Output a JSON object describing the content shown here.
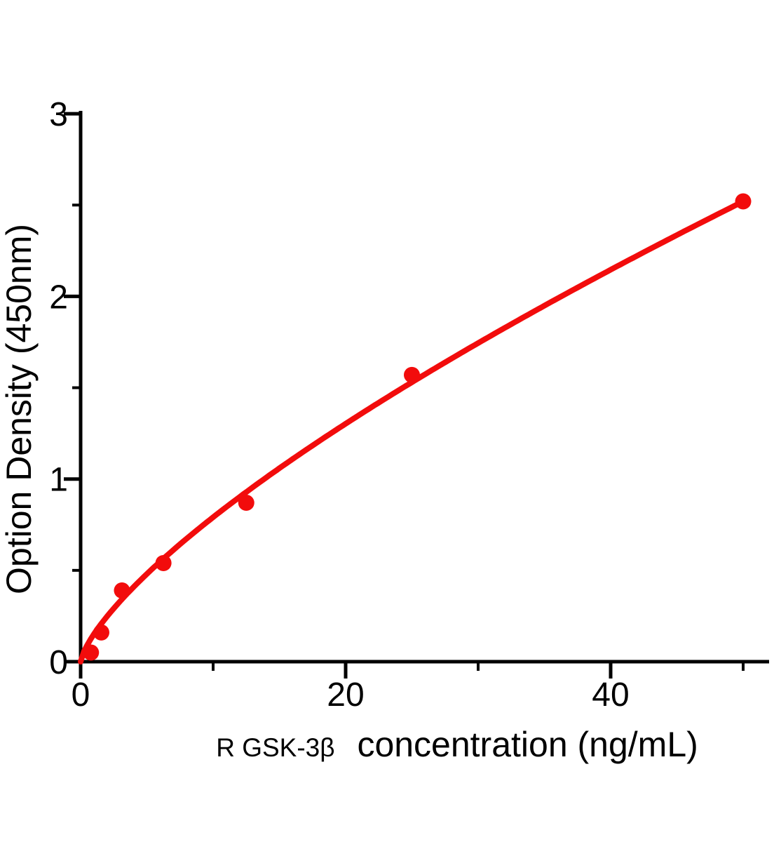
{
  "chart_data": {
    "type": "scatter",
    "xlabel": {
      "prefix": "R GSK-3β",
      "rest": "concentration (ng/mL)"
    },
    "ylabel": "Option Density  (450nm)",
    "x_axis": {
      "min": 0,
      "max": 52,
      "major_ticks": [
        0,
        20,
        40
      ],
      "minor_ticks": [
        10,
        30,
        50
      ],
      "tick_labels": [
        "0",
        "20",
        "40"
      ]
    },
    "y_axis": {
      "min": 0,
      "max": 3,
      "major_ticks": [
        0,
        1,
        2,
        3
      ],
      "minor_ticks": [
        0.5,
        1.5,
        2.5
      ],
      "tick_labels": [
        "0",
        "1",
        "2",
        "3"
      ]
    },
    "points": [
      {
        "x": 0.78,
        "y": 0.05
      },
      {
        "x": 1.56,
        "y": 0.16
      },
      {
        "x": 3.12,
        "y": 0.39
      },
      {
        "x": 6.25,
        "y": 0.54
      },
      {
        "x": 12.5,
        "y": 0.87
      },
      {
        "x": 25,
        "y": 1.57
      },
      {
        "x": 50,
        "y": 2.52
      }
    ],
    "fit_curve": {
      "type": "power",
      "a": 0.1507,
      "b": 0.72,
      "x_start": 0,
      "x_end": 50
    },
    "colors": {
      "series": "#f20c0c",
      "axis": "#000000",
      "text": "#000000"
    },
    "grid": false,
    "legend": false
  }
}
